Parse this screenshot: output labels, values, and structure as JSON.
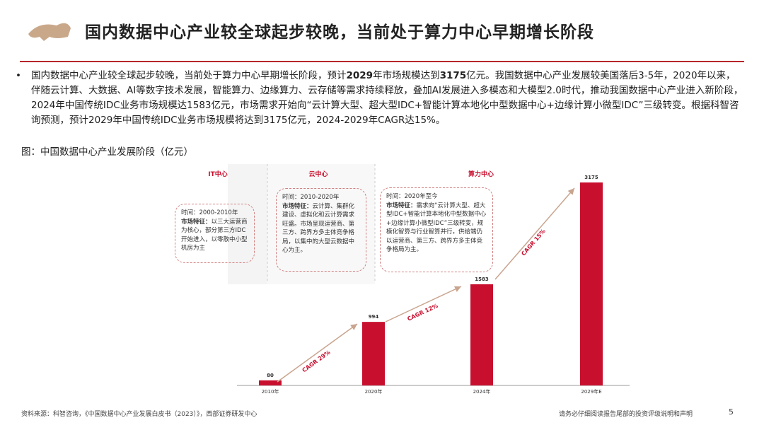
{
  "header": {
    "title": "国内数据中心产业较全球起步较晚，当前处于算力中心早期增长阶段"
  },
  "bullet": {
    "segments": [
      {
        "text": "国内数据中心产业较全球起步较晚，当前处于算力中心早期增长阶段，预计",
        "bold": false
      },
      {
        "text": "2029",
        "bold": true
      },
      {
        "text": "年市场规模达到",
        "bold": false
      },
      {
        "text": "3175",
        "bold": true
      },
      {
        "text": "亿元。我国数据中心产业发展较美国落后3-5年，2020年以来，伴随云计算、大数据、AI等数字技术发展，智能算力、边缘算力、云存储等需求持续释放，叠加AI发展进入多模态和大模型2.0时代，推动我国数据中心产业进入新阶段，2024年中国传统IDC业务市场规模达1583亿元，市场需求开始向“云计算大型、超大型IDC+智能计算本地化中型数据中心+边缘计算小微型IDC”三级转变。根据科智咨询预测，预计2029年中国传统IDC业务市场规模将达到3175亿元，2024-2029年CAGR达15%。",
        "bold": false
      }
    ]
  },
  "chart_data": {
    "type": "bar",
    "title": "图：中国数据中心产业发展阶段（亿元）",
    "categories": [
      "2010年",
      "2020年",
      "2024年",
      "2029年E"
    ],
    "values": [
      80,
      994,
      1583,
      3175
    ],
    "color": "#c8102e",
    "annotations": [
      "CAGR 29%",
      "CAGR 12%",
      "CAGR 15%"
    ],
    "phases": [
      {
        "name": "IT中心",
        "period": "时间：2000-2010年",
        "feature_label": "市场特征：",
        "feature": "以三大运营商为核心，部分第三方IDC开始进入，以零散中小型机房为主"
      },
      {
        "name": "云中心",
        "period": "时间：2010-2020年",
        "feature_label": "市场特征：",
        "feature": "云计算、集群化建设、虚拟化和云计算需求旺盛。市场呈现运营商、第三方、跨界方多主体竞争格局，以集中的大型云数据中心为主。"
      },
      {
        "name": "算力中心",
        "period": "时间：2020年至今",
        "feature_label": "市场特征：",
        "feature": "需求向“云计算大型、超大型IDC+智能计算本地化中型数据中心+边缘计算小微型IDC”三级转变，规模化智算与行业智算并行，供给端仍以运营商、第三方、跨界方多主体竞争格局为主。"
      }
    ]
  },
  "footer": {
    "source": "资料来源：科智咨询，《中国数据中心产业发展白皮书（2023）》，西部证券研发中心",
    "disclaimer": "请务必仔细阅读报告尾部的投资评级说明和声明",
    "page": "5"
  }
}
